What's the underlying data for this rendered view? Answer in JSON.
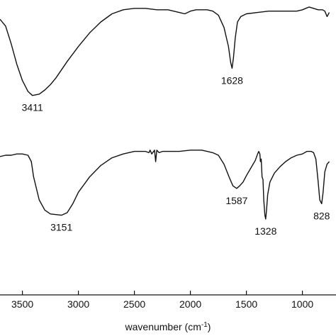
{
  "chart_data": {
    "type": "line",
    "xlabel": "wavenumber (cm",
    "xlabel_sup": "-1",
    "xlabel_close": ")",
    "x_reversed": true,
    "xlim": [
      3700,
      700
    ],
    "xticks": [
      3500,
      3000,
      2500,
      2000,
      1500,
      1000
    ],
    "xtick_labels": [
      "3500",
      "3000",
      "2500",
      "2000",
      "1500",
      "1000"
    ],
    "ylim": [
      0,
      100
    ],
    "grid": false,
    "legend": "none",
    "series": [
      {
        "points": [
          [
            3700,
            90
          ],
          [
            3650,
            85
          ],
          [
            3600,
            72
          ],
          [
            3550,
            57
          ],
          [
            3500,
            45
          ],
          [
            3450,
            37
          ],
          [
            3411,
            34
          ],
          [
            3350,
            35
          ],
          [
            3300,
            38
          ],
          [
            3250,
            42
          ],
          [
            3200,
            47
          ],
          [
            3100,
            59
          ],
          [
            3000,
            70
          ],
          [
            2900,
            80
          ],
          [
            2800,
            88
          ],
          [
            2700,
            94
          ],
          [
            2600,
            97
          ],
          [
            2500,
            98
          ],
          [
            2400,
            98
          ],
          [
            2300,
            97
          ],
          [
            2200,
            97
          ],
          [
            2100,
            95
          ],
          [
            2050,
            94
          ],
          [
            2000,
            96
          ],
          [
            1950,
            97
          ],
          [
            1900,
            97
          ],
          [
            1850,
            97
          ],
          [
            1800,
            96
          ],
          [
            1750,
            93
          ],
          [
            1700,
            84
          ],
          [
            1660,
            70
          ],
          [
            1640,
            58
          ],
          [
            1628,
            54
          ],
          [
            1615,
            62
          ],
          [
            1600,
            76
          ],
          [
            1580,
            88
          ],
          [
            1550,
            92
          ],
          [
            1500,
            94
          ],
          [
            1400,
            95
          ],
          [
            1300,
            96
          ],
          [
            1200,
            96
          ],
          [
            1100,
            96
          ],
          [
            1050,
            96
          ],
          [
            1000,
            97
          ],
          [
            970,
            98
          ],
          [
            940,
            99
          ],
          [
            900,
            98
          ],
          [
            860,
            97
          ],
          [
            820,
            97
          ],
          [
            800,
            96
          ],
          [
            780,
            92
          ],
          [
            760,
            95
          ]
        ]
      },
      {
        "points": [
          [
            3700,
            84
          ],
          [
            3650,
            85
          ],
          [
            3600,
            85
          ],
          [
            3550,
            86
          ],
          [
            3500,
            86
          ],
          [
            3450,
            85
          ],
          [
            3420,
            80
          ],
          [
            3400,
            68
          ],
          [
            3350,
            50
          ],
          [
            3300,
            42
          ],
          [
            3250,
            39
          ],
          [
            3151,
            38
          ],
          [
            3100,
            40
          ],
          [
            3050,
            47
          ],
          [
            3000,
            56
          ],
          [
            2900,
            68
          ],
          [
            2800,
            77
          ],
          [
            2700,
            83
          ],
          [
            2600,
            86
          ],
          [
            2500,
            88
          ],
          [
            2450,
            88
          ],
          [
            2400,
            88
          ],
          [
            2370,
            87
          ],
          [
            2360,
            89
          ],
          [
            2345,
            86
          ],
          [
            2320,
            89
          ],
          [
            2310,
            80
          ],
          [
            2300,
            89
          ],
          [
            2280,
            87
          ],
          [
            2250,
            88
          ],
          [
            2200,
            88
          ],
          [
            2100,
            88
          ],
          [
            2000,
            89
          ],
          [
            1900,
            89
          ],
          [
            1850,
            88
          ],
          [
            1800,
            87
          ],
          [
            1750,
            85
          ],
          [
            1700,
            78
          ],
          [
            1650,
            67
          ],
          [
            1620,
            61
          ],
          [
            1587,
            59
          ],
          [
            1560,
            61
          ],
          [
            1530,
            64
          ],
          [
            1500,
            69
          ],
          [
            1460,
            75
          ],
          [
            1420,
            81
          ],
          [
            1400,
            86
          ],
          [
            1390,
            88
          ],
          [
            1380,
            86
          ],
          [
            1375,
            80
          ],
          [
            1368,
            82
          ],
          [
            1360,
            68
          ],
          [
            1352,
            66
          ],
          [
            1345,
            50
          ],
          [
            1335,
            38
          ],
          [
            1328,
            35
          ],
          [
            1320,
            42
          ],
          [
            1310,
            54
          ],
          [
            1290,
            64
          ],
          [
            1250,
            71
          ],
          [
            1200,
            76
          ],
          [
            1150,
            80
          ],
          [
            1100,
            83
          ],
          [
            1050,
            85
          ],
          [
            1000,
            86
          ],
          [
            960,
            88
          ],
          [
            920,
            88
          ],
          [
            900,
            87
          ],
          [
            880,
            82
          ],
          [
            860,
            65
          ],
          [
            845,
            50
          ],
          [
            828,
            47
          ],
          [
            815,
            56
          ],
          [
            800,
            72
          ],
          [
            780,
            78
          ],
          [
            760,
            80
          ]
        ]
      }
    ],
    "annotations": [
      {
        "text": "3411",
        "x": 3411,
        "y": 34
      },
      {
        "text": "1628",
        "x": 1628,
        "y": 54
      },
      {
        "text": "3151",
        "x": 3151,
        "y": 38
      },
      {
        "text": "1587",
        "x": 1587,
        "y": 59
      },
      {
        "text": "1328",
        "x": 1328,
        "y": 35
      },
      {
        "text": "828",
        "x": 828,
        "y": 47
      }
    ]
  }
}
